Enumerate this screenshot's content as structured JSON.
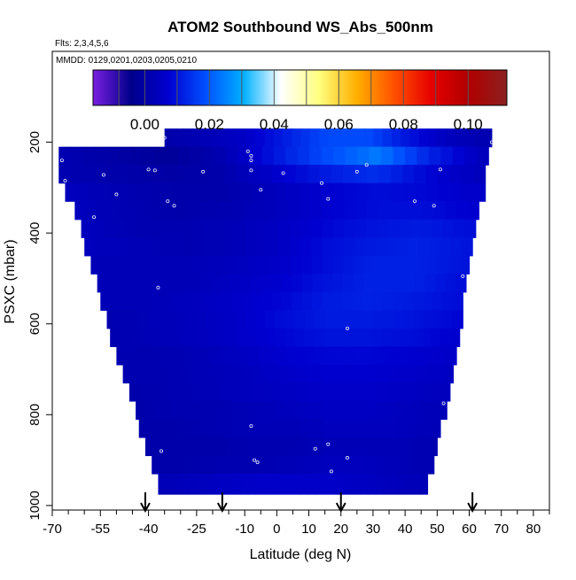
{
  "chart_data": {
    "type": "heatmap",
    "title": "ATOM2 Southbound WS_Abs_500nm",
    "notes": [
      "Flts: 2,3,4,5,6",
      "MMDD: 0129,0201,0203,0205,0210"
    ],
    "xlabel": "Latitude (deg N)",
    "ylabel": "PSXC (mbar)",
    "xlim": [
      -70,
      85
    ],
    "ylim": [
      1010,
      0
    ],
    "x_ticks": [
      -70,
      -55,
      -40,
      -25,
      -10,
      0,
      10,
      20,
      30,
      40,
      50,
      60,
      70,
      80
    ],
    "x_tick_labels": [
      "-70",
      "-55",
      "-40",
      "-25",
      "-10",
      "0",
      "10",
      "20",
      "30",
      "40",
      "50",
      "60",
      "70",
      "80"
    ],
    "x_minor_ticks": [
      -65,
      -60,
      -50,
      -45,
      -35,
      -30,
      -20,
      -15,
      -5,
      5,
      15,
      25,
      35,
      45,
      55,
      65,
      75,
      85
    ],
    "y_ticks": [
      200,
      400,
      600,
      800,
      1000
    ],
    "y_tick_labels": [
      "200",
      "400",
      "600",
      "800",
      "1000"
    ],
    "colorbar": {
      "range": [
        -0.016,
        0.112
      ],
      "ticks": [
        0.0,
        0.02,
        0.04,
        0.06,
        0.08,
        0.1
      ],
      "tick_labels": [
        "0.00",
        "0.02",
        "0.04",
        "0.06",
        "0.08",
        "0.10"
      ],
      "colors": [
        "#7a1fe0",
        "#00008b",
        "#0000d0",
        "#0050ff",
        "#00b0ff",
        "#ffffff",
        "#ffff80",
        "#ffb000",
        "#ff5000",
        "#e60000",
        "#b00000",
        "#8b2020"
      ],
      "divider_values": [
        -0.008,
        0.0,
        0.01,
        0.02,
        0.03,
        0.04,
        0.05,
        0.06,
        0.07,
        0.08,
        0.09,
        0.1
      ]
    },
    "field": {
      "p_edges": [
        170,
        210,
        250,
        290,
        330,
        370,
        410,
        450,
        490,
        530,
        570,
        610,
        650,
        690,
        730,
        770,
        810,
        850,
        890,
        930,
        975
      ],
      "lat_min": [
        -35,
        -68,
        -68,
        -66,
        -63,
        -61,
        -60,
        -58,
        -56,
        -55,
        -53,
        -52,
        -50,
        -48,
        -46,
        -44,
        -43,
        -41,
        -39,
        -37
      ],
      "lat_max": [
        67,
        66,
        65,
        65,
        63,
        62,
        61,
        60,
        59,
        58,
        58,
        57,
        56,
        55,
        54,
        53,
        51,
        50,
        49,
        47
      ],
      "values": [
        [
          0.001,
          0.003,
          0.006,
          0.012,
          0.018,
          0.018,
          0.01,
          0.004,
          0.002
        ],
        [
          0.002,
          0.0,
          -0.002,
          0.002,
          0.01,
          0.018,
          0.024,
          0.012,
          0.004
        ],
        [
          0.002,
          0.001,
          0.0,
          0.001,
          0.006,
          0.011,
          0.014,
          0.008,
          0.004
        ],
        [
          0.004,
          0.002,
          0.001,
          0.001,
          0.004,
          0.007,
          0.009,
          0.008,
          0.006
        ],
        [
          0.004,
          0.002,
          0.001,
          0.002,
          0.004,
          0.007,
          0.009,
          0.009,
          0.007
        ],
        [
          0.004,
          0.002,
          0.002,
          0.003,
          0.005,
          0.008,
          0.01,
          0.011,
          0.009
        ],
        [
          0.004,
          0.003,
          0.002,
          0.003,
          0.005,
          0.009,
          0.011,
          0.012,
          0.01
        ],
        [
          0.003,
          0.003,
          0.003,
          0.004,
          0.006,
          0.009,
          0.012,
          0.012,
          0.01
        ],
        [
          0.003,
          0.003,
          0.003,
          0.005,
          0.007,
          0.01,
          0.012,
          0.012,
          0.009
        ],
        [
          0.003,
          0.003,
          0.004,
          0.006,
          0.008,
          0.011,
          0.012,
          0.011,
          0.009
        ],
        [
          0.002,
          0.003,
          0.004,
          0.006,
          0.009,
          0.011,
          0.011,
          0.01,
          0.008
        ],
        [
          0.002,
          0.003,
          0.004,
          0.006,
          0.008,
          0.01,
          0.01,
          0.009,
          0.007
        ],
        [
          0.002,
          0.002,
          0.003,
          0.005,
          0.007,
          0.008,
          0.008,
          0.007,
          0.006
        ],
        [
          0.002,
          0.002,
          0.003,
          0.004,
          0.006,
          0.007,
          0.007,
          0.006,
          0.005
        ],
        [
          0.001,
          0.002,
          0.003,
          0.004,
          0.005,
          0.006,
          0.006,
          0.005,
          0.004
        ],
        [
          0.001,
          0.002,
          0.002,
          0.003,
          0.004,
          0.005,
          0.005,
          0.004,
          0.003
        ],
        [
          0.001,
          0.001,
          0.002,
          0.003,
          0.003,
          0.004,
          0.004,
          0.004,
          0.003
        ],
        [
          0.001,
          0.001,
          0.001,
          0.002,
          0.002,
          0.003,
          0.003,
          0.003,
          0.002
        ],
        [
          0.001,
          0.001,
          0.002,
          0.002,
          0.003,
          0.004,
          0.004,
          0.003,
          0.002
        ],
        [
          0.003,
          0.004,
          0.005,
          0.006,
          0.006,
          0.006,
          0.005,
          0.004,
          0.003
        ]
      ]
    },
    "samples": [
      {
        "lat": -67,
        "p": 240
      },
      {
        "lat": -66,
        "p": 285
      },
      {
        "lat": -54,
        "p": 272
      },
      {
        "lat": -50,
        "p": 315
      },
      {
        "lat": -57,
        "p": 365
      },
      {
        "lat": -40,
        "p": 260
      },
      {
        "lat": -38,
        "p": 262
      },
      {
        "lat": -34,
        "p": 330
      },
      {
        "lat": -32,
        "p": 340
      },
      {
        "lat": -23,
        "p": 265
      },
      {
        "lat": -9,
        "p": 220
      },
      {
        "lat": -8,
        "p": 230
      },
      {
        "lat": -8,
        "p": 240
      },
      {
        "lat": -8,
        "p": 262
      },
      {
        "lat": -5,
        "p": 305
      },
      {
        "lat": 2,
        "p": 268
      },
      {
        "lat": 14,
        "p": 290
      },
      {
        "lat": 16,
        "p": 325
      },
      {
        "lat": 25,
        "p": 265
      },
      {
        "lat": 28,
        "p": 250
      },
      {
        "lat": 43,
        "p": 330
      },
      {
        "lat": 49,
        "p": 340
      },
      {
        "lat": 51,
        "p": 260
      },
      {
        "lat": 67,
        "p": 200
      },
      {
        "lat": 58,
        "p": 495
      },
      {
        "lat": -37,
        "p": 520
      },
      {
        "lat": 22,
        "p": 610
      },
      {
        "lat": 52,
        "p": 775
      },
      {
        "lat": -8,
        "p": 825
      },
      {
        "lat": -36,
        "p": 880
      },
      {
        "lat": -7,
        "p": 900
      },
      {
        "lat": -6,
        "p": 905
      },
      {
        "lat": 12,
        "p": 875
      },
      {
        "lat": 16,
        "p": 865
      },
      {
        "lat": 22,
        "p": 895
      },
      {
        "lat": 17,
        "p": 925
      },
      {
        "lat": -35,
        "p": 190
      }
    ],
    "arrows_lat": [
      -41,
      -17,
      20,
      61
    ]
  }
}
